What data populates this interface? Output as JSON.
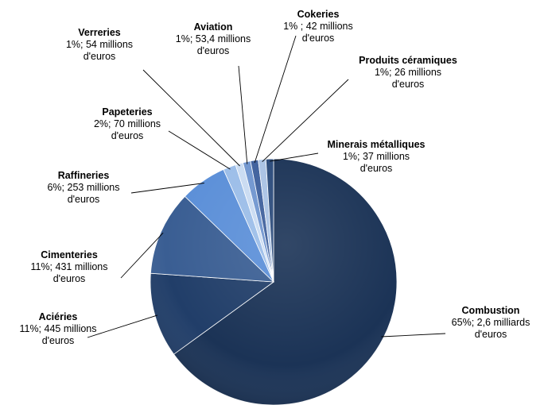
{
  "chart_data": {
    "type": "pie",
    "title": "",
    "slices": [
      {
        "name": "Combustion",
        "percent": 65,
        "value_text": "65%; 2,6 milliards",
        "unit_text": "d'euros",
        "color": "#1b3356"
      },
      {
        "name": "Aciéries",
        "percent": 11,
        "value_text": "11%; 445 millions",
        "unit_text": "d'euros",
        "color": "#213e69"
      },
      {
        "name": "Cimenteries",
        "percent": 11,
        "value_text": "11%; 431 millions",
        "unit_text": "d'euros",
        "color": "#3a5e93"
      },
      {
        "name": "Raffineries",
        "percent": 6,
        "value_text": "6%; 253 millions",
        "unit_text": "d'euros",
        "color": "#5b8fd8"
      },
      {
        "name": "Papeteries",
        "percent": 2,
        "value_text": "2%; 70 millions",
        "unit_text": "d'euros",
        "color": "#9bbde8"
      },
      {
        "name": "Verreries",
        "percent": 1,
        "value_text": "1%; 54 millions",
        "unit_text": "d'euros",
        "color": "#c9dbf2"
      },
      {
        "name": "Aviation",
        "percent": 1,
        "value_text": "1%; 53,4 millions",
        "unit_text": "d'euros",
        "color": "#6f95cf"
      },
      {
        "name": "Cokeries",
        "percent": 1,
        "value_text": "1% ; 42 millions",
        "unit_text": "d'euros",
        "color": "#3d5f9c"
      },
      {
        "name": "Produits céramiques",
        "percent": 1,
        "value_text": "1%; 26 millions",
        "unit_text": "d'euros",
        "color": "#a9c2e4"
      },
      {
        "name": "Minerais métalliques",
        "percent": 1,
        "value_text": "1%; 37 millions",
        "unit_text": "d'euros",
        "color": "#2a4a7a"
      }
    ]
  }
}
